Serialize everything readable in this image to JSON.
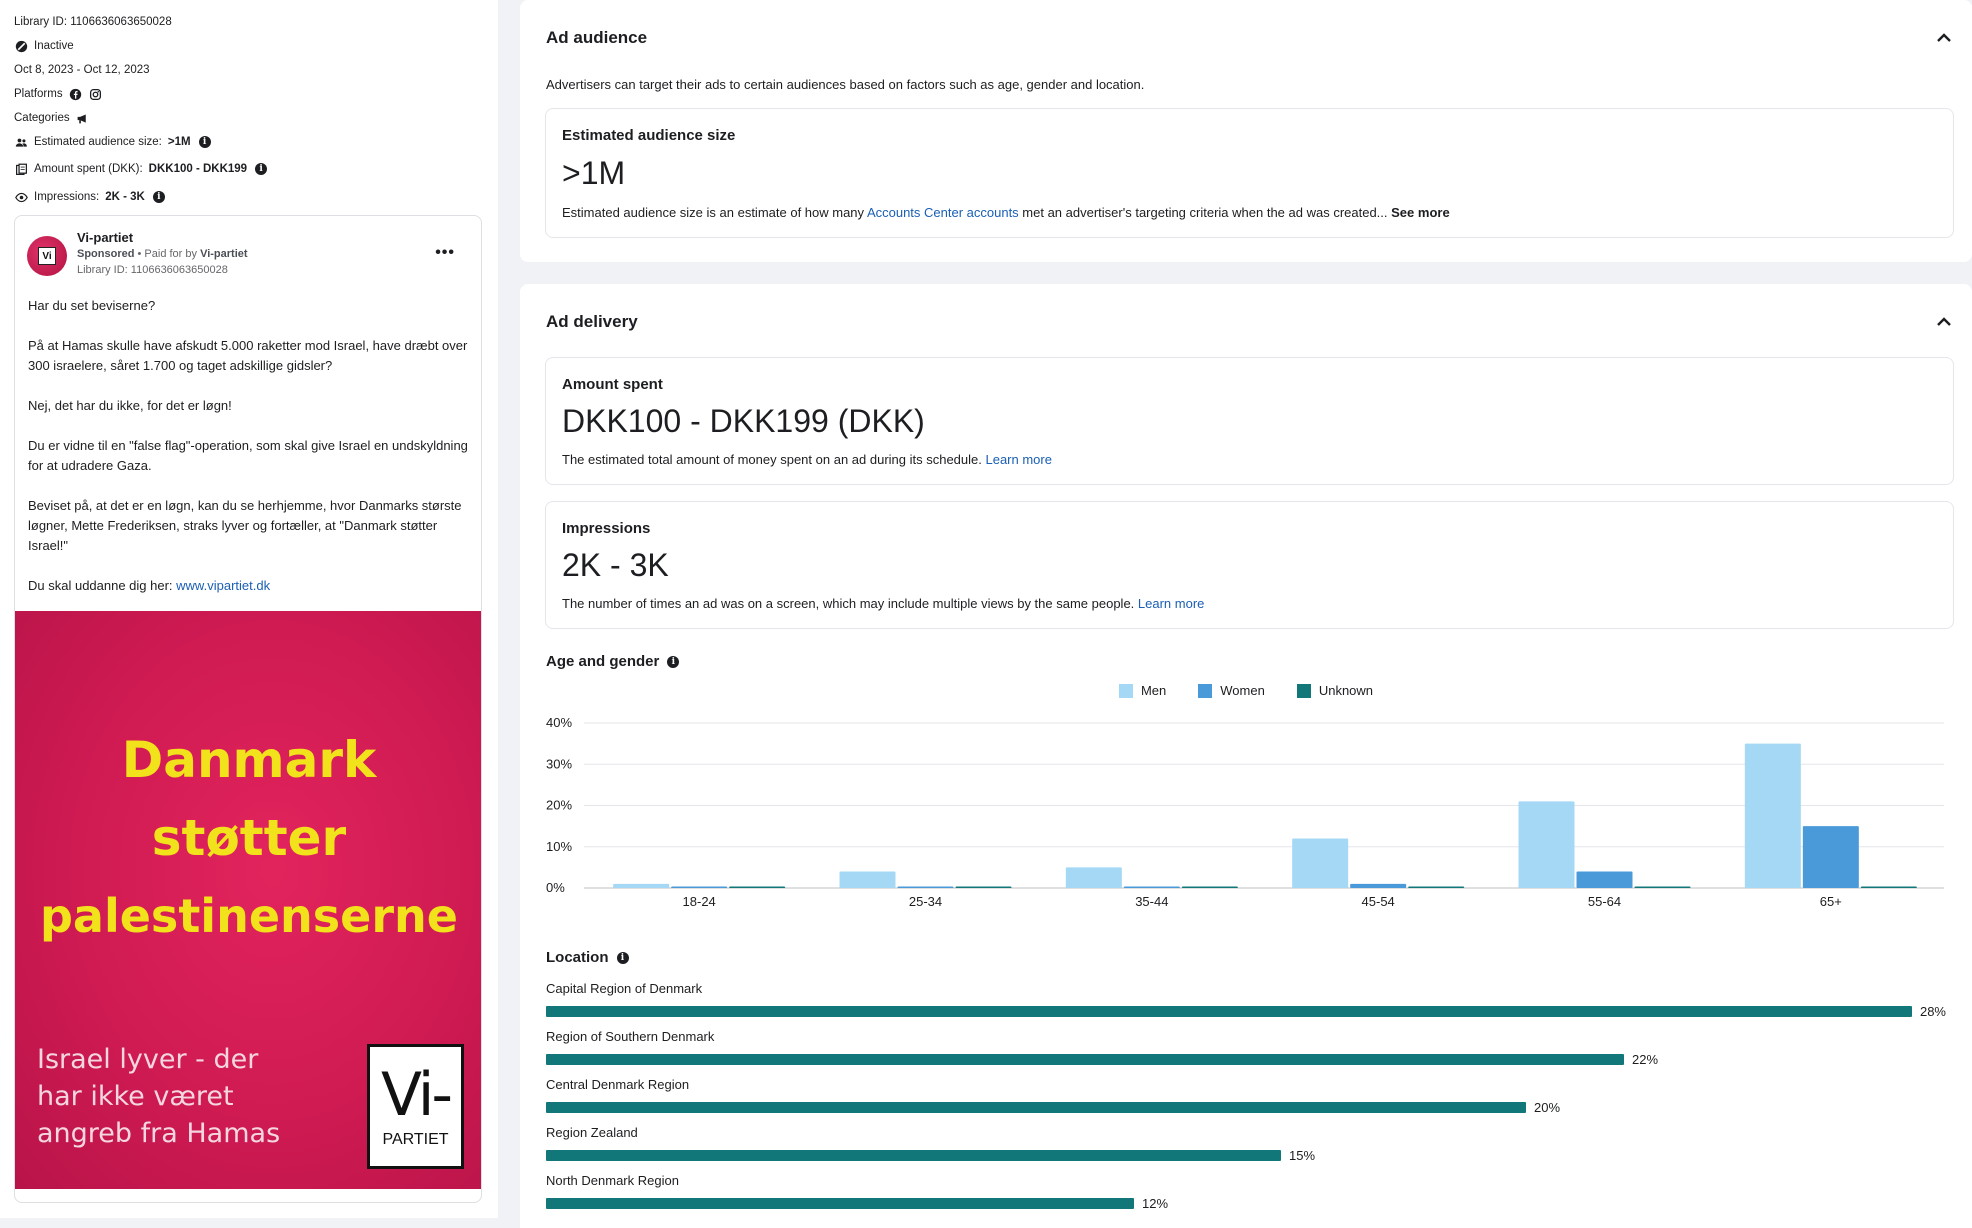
{
  "meta": {
    "library_id": "Library ID: 1106636063650028",
    "status": "Inactive",
    "date_range": "Oct 8, 2023 - Oct 12, 2023",
    "platforms_label": "Platforms",
    "categories_label": "Categories",
    "audience_label": "Estimated audience size:",
    "audience_value": ">1M",
    "amount_label": "Amount spent (DKK):",
    "amount_value": "DKK100 - DKK199",
    "impressions_label": "Impressions:",
    "impressions_value": "2K - 3K"
  },
  "ad": {
    "advertiser": "Vi-partiet",
    "avatar_text": "Vi",
    "sponsored": "Sponsored",
    "paid_for_prefix": " • Paid for by ",
    "paid_for_by": "Vi-partiet",
    "library_id": "Library ID: 1106636063650028",
    "more": "•••",
    "body": [
      "Har du set beviserne?",
      "På at Hamas skulle have afskudt 5.000 raketter mod Israel, have dræbt over 300 israelere, såret 1.700 og taget adskillige gidsler?",
      "Nej, det har du ikke, for det er løgn!",
      "Du er vidne til en \"false flag\"-operation, som skal give Israel en undskyldning for at udradere Gaza.",
      "Beviset på, at det er en løgn, kan du se herhjemme, hvor Danmarks største løgner, Mette Frederiksen, straks lyver og fortæller, at \"Danmark støtter Israel!\""
    ],
    "link_prefix": "Du skal uddanne dig her: ",
    "link_text": "www.vipartiet.dk",
    "image": {
      "headline_1": "Danmark",
      "headline_2": "støtter",
      "headline_3": "palestinenserne",
      "subline_1": "Israel lyver - der",
      "subline_2": "har ikke været",
      "subline_3": "angreb fra Hamas",
      "logo_vi": "Vi-",
      "logo_partiet": "PARTIET",
      "headline_color": "#f2e21b",
      "background_color": "#d11c55"
    }
  },
  "audience_card": {
    "title": "Ad audience",
    "description": "Advertisers can target their ads to certain audiences based on factors such as age, gender and location.",
    "size_label": "Estimated audience size",
    "size_value": ">1M",
    "note_prefix": "Estimated audience size is an estimate of how many ",
    "note_link": "Accounts Center accounts",
    "note_suffix": " met an advertiser's targeting criteria when the ad was created... ",
    "see_more": "See more"
  },
  "delivery_card": {
    "title": "Ad delivery",
    "amount_label": "Amount spent",
    "amount_value": "DKK100 - DKK199 (DKK)",
    "amount_note": "The estimated total amount of money spent on an ad during its schedule. ",
    "learn_more": "Learn more",
    "impressions_label": "Impressions",
    "impressions_value": "2K - 3K",
    "impressions_note": "The number of times an ad was on a screen, which may include multiple views by the same people. ",
    "age_gender_title": "Age and gender",
    "location_title": "Location"
  },
  "chart_data": [
    {
      "type": "bar",
      "title": "Age and gender",
      "categories": [
        "18-24",
        "25-34",
        "35-44",
        "45-54",
        "55-64",
        "65+"
      ],
      "series": [
        {
          "name": "Men",
          "color": "#a4d8f5",
          "values": [
            1,
            4,
            5,
            12,
            21,
            35
          ]
        },
        {
          "name": "Women",
          "color": "#4a9ad9",
          "values": [
            0.3,
            0.3,
            0.3,
            1,
            4,
            15
          ]
        },
        {
          "name": "Unknown",
          "color": "#127779",
          "values": [
            0.3,
            0.3,
            0.3,
            0.3,
            0.3,
            0.3
          ]
        }
      ],
      "y_ticks": [
        "0%",
        "10%",
        "20%",
        "30%",
        "40%"
      ],
      "ylim": [
        0,
        40
      ],
      "legend": "top-center",
      "grid": true
    },
    {
      "type": "bar",
      "orientation": "horizontal",
      "title": "Location",
      "categories": [
        "Capital Region of Denmark",
        "Region of Southern Denmark",
        "Central Denmark Region",
        "Region Zealand",
        "North Denmark Region"
      ],
      "values": [
        28,
        22,
        20,
        15,
        12
      ],
      "labels": [
        "28%",
        "22%",
        "20%",
        "15%",
        "12%"
      ],
      "color": "#127779"
    }
  ]
}
